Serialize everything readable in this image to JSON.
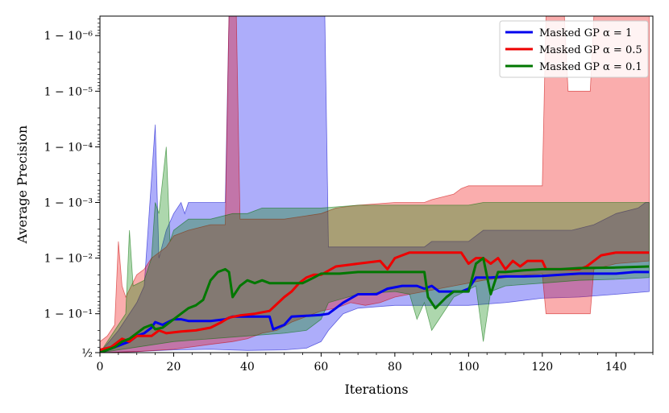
{
  "chart_data": {
    "type": "line",
    "title": "",
    "xlabel": "Iterations",
    "ylabel": "Average Precision",
    "xlim": [
      0,
      150
    ],
    "y_scale": "logit-like (1 - 10^-k)",
    "ylim_decades": [
      0.30103,
      6.35
    ],
    "x_ticks": [
      "0",
      "20",
      "40",
      "60",
      "80",
      "100",
      "120",
      "140"
    ],
    "y_ticks": [
      {
        "label": "½",
        "k": 0.30103
      },
      {
        "label": "1 − 10⁻¹",
        "k": 1
      },
      {
        "label": "1 − 10⁻²",
        "k": 2
      },
      {
        "label": "1 − 10⁻³",
        "k": 3
      },
      {
        "label": "1 − 10⁻⁴",
        "k": 4
      },
      {
        "label": "1 − 10⁻⁵",
        "k": 5
      },
      {
        "label": "1 − 10⁻⁶",
        "k": 6
      }
    ],
    "legend_position": "top-right",
    "series": [
      {
        "name": "Masked GP α = 1",
        "color": "#0000ee",
        "mean": [
          [
            0,
            0.3
          ],
          [
            2,
            0.35
          ],
          [
            4,
            0.4
          ],
          [
            6,
            0.45
          ],
          [
            8,
            0.5
          ],
          [
            10,
            0.6
          ],
          [
            12,
            0.65
          ],
          [
            14,
            0.75
          ],
          [
            15,
            0.85
          ],
          [
            17,
            0.8
          ],
          [
            20,
            0.9
          ],
          [
            22,
            0.9
          ],
          [
            24,
            0.87
          ],
          [
            26,
            0.87
          ],
          [
            30,
            0.87
          ],
          [
            34,
            0.9
          ],
          [
            36,
            0.95
          ],
          [
            40,
            0.95
          ],
          [
            46,
            0.95
          ],
          [
            47,
            0.72
          ],
          [
            50,
            0.8
          ],
          [
            52,
            0.95
          ],
          [
            58,
            0.97
          ],
          [
            60,
            0.98
          ],
          [
            62,
            1.0
          ],
          [
            64,
            1.1
          ],
          [
            66,
            1.2
          ],
          [
            70,
            1.35
          ],
          [
            75,
            1.35
          ],
          [
            78,
            1.45
          ],
          [
            82,
            1.5
          ],
          [
            86,
            1.5
          ],
          [
            88,
            1.45
          ],
          [
            90,
            1.5
          ],
          [
            92,
            1.4
          ],
          [
            94,
            1.4
          ],
          [
            98,
            1.4
          ],
          [
            100,
            1.45
          ],
          [
            102,
            1.65
          ],
          [
            106,
            1.65
          ],
          [
            110,
            1.67
          ],
          [
            115,
            1.67
          ],
          [
            120,
            1.68
          ],
          [
            125,
            1.7
          ],
          [
            130,
            1.72
          ],
          [
            135,
            1.72
          ],
          [
            140,
            1.72
          ],
          [
            145,
            1.75
          ],
          [
            149,
            1.75
          ]
        ],
        "upper": [
          [
            0,
            0.3
          ],
          [
            5,
            0.7
          ],
          [
            10,
            1.2
          ],
          [
            12,
            1.5
          ],
          [
            15,
            4.4
          ],
          [
            16,
            2.0
          ],
          [
            18,
            2.5
          ],
          [
            20,
            2.8
          ],
          [
            22,
            3.0
          ],
          [
            23,
            2.8
          ],
          [
            24,
            3.0
          ],
          [
            30,
            3.0
          ],
          [
            34,
            3.0
          ],
          [
            35,
            6.35
          ],
          [
            61,
            6.35
          ],
          [
            62,
            2.2
          ],
          [
            70,
            2.2
          ],
          [
            80,
            2.2
          ],
          [
            88,
            2.2
          ],
          [
            90,
            2.3
          ],
          [
            100,
            2.3
          ],
          [
            104,
            2.5
          ],
          [
            110,
            2.5
          ],
          [
            118,
            2.5
          ],
          [
            122,
            2.5
          ],
          [
            128,
            2.5
          ],
          [
            134,
            2.6
          ],
          [
            140,
            2.8
          ],
          [
            146,
            2.9
          ],
          [
            148,
            3.0
          ],
          [
            149,
            3.0
          ]
        ],
        "lower": [
          [
            0,
            0.3
          ],
          [
            10,
            0.32
          ],
          [
            20,
            0.35
          ],
          [
            30,
            0.36
          ],
          [
            40,
            0.34
          ],
          [
            50,
            0.35
          ],
          [
            56,
            0.38
          ],
          [
            60,
            0.5
          ],
          [
            62,
            0.7
          ],
          [
            66,
            1.0
          ],
          [
            70,
            1.1
          ],
          [
            80,
            1.15
          ],
          [
            100,
            1.15
          ],
          [
            110,
            1.2
          ],
          [
            120,
            1.28
          ],
          [
            130,
            1.3
          ],
          [
            140,
            1.35
          ],
          [
            149,
            1.4
          ]
        ]
      },
      {
        "name": "Masked GP α = 0.5",
        "color": "#ee0000",
        "mean": [
          [
            0,
            0.35
          ],
          [
            3,
            0.4
          ],
          [
            6,
            0.55
          ],
          [
            8,
            0.5
          ],
          [
            10,
            0.6
          ],
          [
            14,
            0.6
          ],
          [
            16,
            0.7
          ],
          [
            18,
            0.65
          ],
          [
            22,
            0.68
          ],
          [
            26,
            0.7
          ],
          [
            30,
            0.75
          ],
          [
            33,
            0.85
          ],
          [
            35,
            0.93
          ],
          [
            38,
            0.97
          ],
          [
            42,
            1.0
          ],
          [
            46,
            1.05
          ],
          [
            50,
            1.3
          ],
          [
            52,
            1.4
          ],
          [
            54,
            1.55
          ],
          [
            56,
            1.65
          ],
          [
            58,
            1.7
          ],
          [
            60,
            1.7
          ],
          [
            64,
            1.85
          ],
          [
            70,
            1.9
          ],
          [
            76,
            1.95
          ],
          [
            78,
            1.8
          ],
          [
            80,
            2.0
          ],
          [
            82,
            2.05
          ],
          [
            84,
            2.1
          ],
          [
            90,
            2.1
          ],
          [
            96,
            2.1
          ],
          [
            98,
            2.1
          ],
          [
            100,
            1.9
          ],
          [
            102,
            2.0
          ],
          [
            104,
            2.0
          ],
          [
            106,
            1.9
          ],
          [
            108,
            2.0
          ],
          [
            110,
            1.8
          ],
          [
            112,
            1.95
          ],
          [
            114,
            1.85
          ],
          [
            116,
            1.95
          ],
          [
            120,
            1.95
          ],
          [
            121,
            1.8
          ],
          [
            124,
            1.8
          ],
          [
            128,
            1.8
          ],
          [
            130,
            1.8
          ],
          [
            132,
            1.85
          ],
          [
            134,
            1.95
          ],
          [
            136,
            2.05
          ],
          [
            140,
            2.1
          ],
          [
            145,
            2.1
          ],
          [
            149,
            2.1
          ]
        ],
        "upper": [
          [
            0,
            0.5
          ],
          [
            2,
            0.6
          ],
          [
            4,
            0.8
          ],
          [
            5,
            2.3
          ],
          [
            6,
            1.5
          ],
          [
            7,
            1.3
          ],
          [
            10,
            1.7
          ],
          [
            12,
            1.8
          ],
          [
            14,
            2.0
          ],
          [
            18,
            2.2
          ],
          [
            20,
            2.4
          ],
          [
            24,
            2.5
          ],
          [
            30,
            2.6
          ],
          [
            34,
            2.6
          ],
          [
            35,
            6.35
          ],
          [
            37,
            6.35
          ],
          [
            38,
            2.7
          ],
          [
            50,
            2.7
          ],
          [
            60,
            2.8
          ],
          [
            64,
            2.9
          ],
          [
            70,
            2.95
          ],
          [
            80,
            3.0
          ],
          [
            84,
            3.0
          ],
          [
            88,
            3.0
          ],
          [
            90,
            3.05
          ],
          [
            96,
            3.15
          ],
          [
            98,
            3.25
          ],
          [
            100,
            3.3
          ],
          [
            110,
            3.3
          ],
          [
            120,
            3.3
          ],
          [
            121,
            6.35
          ],
          [
            126,
            6.35
          ],
          [
            127,
            5.0
          ],
          [
            133,
            5.0
          ],
          [
            134,
            6.35
          ],
          [
            149,
            6.35
          ]
        ],
        "lower": [
          [
            0,
            0.3
          ],
          [
            10,
            0.32
          ],
          [
            20,
            0.36
          ],
          [
            30,
            0.45
          ],
          [
            36,
            0.5
          ],
          [
            40,
            0.55
          ],
          [
            44,
            0.65
          ],
          [
            48,
            0.7
          ],
          [
            52,
            0.85
          ],
          [
            56,
            0.95
          ],
          [
            60,
            1.05
          ],
          [
            64,
            1.1
          ],
          [
            68,
            1.2
          ],
          [
            72,
            1.15
          ],
          [
            76,
            1.2
          ],
          [
            80,
            1.3
          ],
          [
            84,
            1.35
          ],
          [
            88,
            1.4
          ],
          [
            92,
            1.45
          ],
          [
            96,
            1.5
          ],
          [
            100,
            1.55
          ],
          [
            104,
            1.6
          ],
          [
            110,
            1.65
          ],
          [
            116,
            1.7
          ],
          [
            120,
            1.72
          ],
          [
            121,
            1.0
          ],
          [
            133,
            1.0
          ],
          [
            134,
            1.8
          ],
          [
            140,
            1.9
          ],
          [
            149,
            1.95
          ]
        ]
      },
      {
        "name": "Masked GP α = 0.1",
        "color": "#007700",
        "mean": [
          [
            0,
            0.3
          ],
          [
            2,
            0.35
          ],
          [
            4,
            0.4
          ],
          [
            6,
            0.5
          ],
          [
            8,
            0.55
          ],
          [
            10,
            0.65
          ],
          [
            12,
            0.75
          ],
          [
            14,
            0.8
          ],
          [
            15,
            0.72
          ],
          [
            17,
            0.75
          ],
          [
            18,
            0.8
          ],
          [
            20,
            0.9
          ],
          [
            22,
            1.0
          ],
          [
            24,
            1.1
          ],
          [
            26,
            1.15
          ],
          [
            28,
            1.25
          ],
          [
            30,
            1.6
          ],
          [
            32,
            1.75
          ],
          [
            34,
            1.8
          ],
          [
            35,
            1.75
          ],
          [
            36,
            1.3
          ],
          [
            38,
            1.5
          ],
          [
            40,
            1.6
          ],
          [
            42,
            1.55
          ],
          [
            44,
            1.6
          ],
          [
            46,
            1.55
          ],
          [
            50,
            1.55
          ],
          [
            55,
            1.55
          ],
          [
            58,
            1.65
          ],
          [
            60,
            1.72
          ],
          [
            65,
            1.72
          ],
          [
            70,
            1.75
          ],
          [
            80,
            1.75
          ],
          [
            86,
            1.75
          ],
          [
            88,
            1.75
          ],
          [
            89,
            1.3
          ],
          [
            91,
            1.1
          ],
          [
            94,
            1.3
          ],
          [
            96,
            1.4
          ],
          [
            100,
            1.4
          ],
          [
            102,
            1.9
          ],
          [
            104,
            2.0
          ],
          [
            106,
            1.35
          ],
          [
            108,
            1.75
          ],
          [
            110,
            1.75
          ],
          [
            115,
            1.78
          ],
          [
            120,
            1.8
          ],
          [
            125,
            1.8
          ],
          [
            130,
            1.82
          ],
          [
            140,
            1.83
          ],
          [
            149,
            1.85
          ]
        ],
        "upper": [
          [
            0,
            0.3
          ],
          [
            5,
            0.8
          ],
          [
            7,
            1.0
          ],
          [
            8,
            2.5
          ],
          [
            9,
            1.5
          ],
          [
            12,
            1.6
          ],
          [
            14,
            2.0
          ],
          [
            15,
            3.0
          ],
          [
            16,
            2.8
          ],
          [
            18,
            4.0
          ],
          [
            19,
            2.3
          ],
          [
            20,
            2.5
          ],
          [
            24,
            2.7
          ],
          [
            30,
            2.7
          ],
          [
            36,
            2.8
          ],
          [
            40,
            2.8
          ],
          [
            44,
            2.9
          ],
          [
            50,
            2.9
          ],
          [
            60,
            2.9
          ],
          [
            70,
            2.95
          ],
          [
            80,
            2.95
          ],
          [
            86,
            2.95
          ],
          [
            90,
            2.95
          ],
          [
            100,
            2.95
          ],
          [
            104,
            3.0
          ],
          [
            110,
            3.0
          ],
          [
            120,
            3.0
          ],
          [
            130,
            3.0
          ],
          [
            140,
            3.0
          ],
          [
            149,
            3.0
          ]
        ],
        "lower": [
          [
            0,
            0.3
          ],
          [
            10,
            0.4
          ],
          [
            20,
            0.5
          ],
          [
            30,
            0.55
          ],
          [
            40,
            0.6
          ],
          [
            50,
            0.65
          ],
          [
            56,
            0.7
          ],
          [
            60,
            0.9
          ],
          [
            62,
            1.2
          ],
          [
            70,
            1.35
          ],
          [
            80,
            1.4
          ],
          [
            84,
            1.35
          ],
          [
            86,
            0.9
          ],
          [
            88,
            1.2
          ],
          [
            90,
            0.7
          ],
          [
            92,
            0.9
          ],
          [
            96,
            1.3
          ],
          [
            102,
            1.5
          ],
          [
            104,
            0.5
          ],
          [
            106,
            1.4
          ],
          [
            110,
            1.5
          ],
          [
            120,
            1.55
          ],
          [
            130,
            1.6
          ],
          [
            140,
            1.62
          ],
          [
            149,
            1.65
          ]
        ]
      }
    ]
  }
}
